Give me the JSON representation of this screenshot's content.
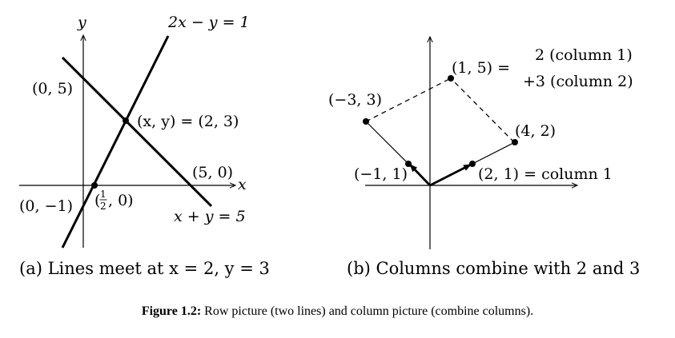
{
  "panel_a": {
    "y_axis_label": "y",
    "x_axis_label": "x",
    "line1_label": "2x − y = 1",
    "line2_label": "x + y = 5",
    "point_0_5": "(0, 5)",
    "point_intersection": "(x, y) = (2, 3)",
    "point_5_0": "(5, 0)",
    "point_0_m1": "(0, −1)",
    "point_half_0_open": "(",
    "point_half_0_num": "1",
    "point_half_0_den": "2",
    "point_half_0_rest": ", 0)",
    "caption": "(a) Lines meet at x = 2, y = 3"
  },
  "panel_b": {
    "point_m3_3": "(−3, 3)",
    "point_1_5": "(1, 5) =",
    "combo_line1": "2 (column 1)",
    "combo_line2": "+3 (column 2)",
    "point_4_2": "(4, 2)",
    "point_m1_1": "(−1, 1)",
    "point_2_1": "(2, 1) = column 1",
    "caption": "(b) Columns combine with 2 and 3"
  },
  "figure_caption": {
    "label": "Figure 1.2:",
    "text": " Row picture (two lines) and column picture (combine columns)."
  }
}
